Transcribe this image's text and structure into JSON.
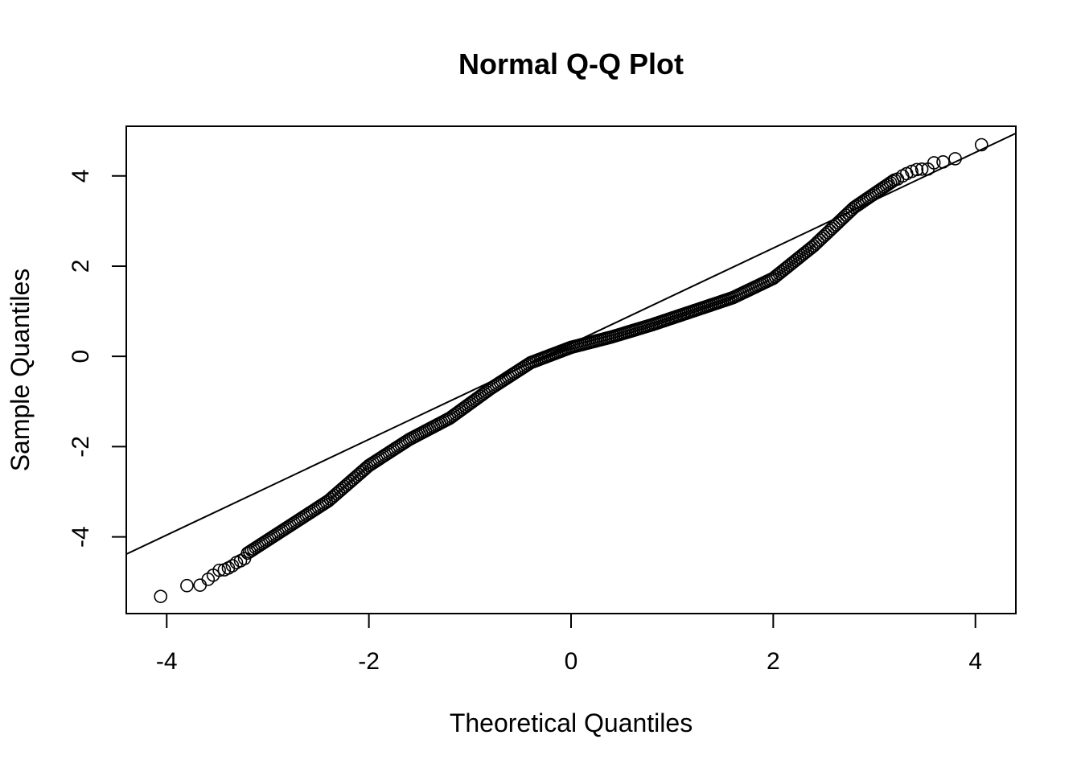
{
  "chart_data": {
    "type": "scatter",
    "subtype": "normal-qq",
    "title": "Normal Q-Q Plot",
    "xlabel": "Theoretical Quantiles",
    "ylabel": "Sample Quantiles",
    "xlim": [
      -4.4,
      4.4
    ],
    "ylim": [
      -5.7,
      5.1
    ],
    "xticks": [
      -4,
      -2,
      0,
      2,
      4
    ],
    "xtick_labels": [
      "-4",
      "-2",
      "0",
      "2",
      "4"
    ],
    "yticks": [
      -4,
      -2,
      0,
      2,
      4
    ],
    "ytick_labels": [
      "-4",
      "-2",
      "0",
      "2",
      "4"
    ],
    "grid": false,
    "legend": "none",
    "marker": "open-circle",
    "reference_line": {
      "slope": 1.06,
      "intercept": 0.28
    },
    "curve_x": [
      -3.2,
      -2.8,
      -2.4,
      -2.0,
      -1.6,
      -1.2,
      -0.8,
      -0.4,
      0.0,
      0.4,
      0.8,
      1.2,
      1.6,
      2.0,
      2.4,
      2.8,
      3.2
    ],
    "curve_y": [
      -4.36,
      -3.78,
      -3.2,
      -2.42,
      -1.84,
      -1.37,
      -0.72,
      -0.14,
      0.2,
      0.43,
      0.7,
      1.0,
      1.3,
      1.73,
      2.45,
      3.3,
      3.91
    ],
    "tail_points": [
      {
        "x": -4.06,
        "y": -5.32
      },
      {
        "x": -3.8,
        "y": -5.08
      },
      {
        "x": -3.67,
        "y": -5.07
      },
      {
        "x": -3.59,
        "y": -4.94
      },
      {
        "x": -3.54,
        "y": -4.85
      },
      {
        "x": -3.48,
        "y": -4.74
      },
      {
        "x": -3.43,
        "y": -4.73
      },
      {
        "x": -3.39,
        "y": -4.69
      },
      {
        "x": -3.35,
        "y": -4.64
      },
      {
        "x": -3.31,
        "y": -4.57
      },
      {
        "x": -3.27,
        "y": -4.53
      },
      {
        "x": -3.23,
        "y": -4.48
      },
      {
        "x": 3.23,
        "y": 3.93
      },
      {
        "x": 3.28,
        "y": 4.0
      },
      {
        "x": 3.32,
        "y": 4.05
      },
      {
        "x": 3.37,
        "y": 4.1
      },
      {
        "x": 3.42,
        "y": 4.14
      },
      {
        "x": 3.47,
        "y": 4.15
      },
      {
        "x": 3.53,
        "y": 4.15
      },
      {
        "x": 3.59,
        "y": 4.29
      },
      {
        "x": 3.68,
        "y": 4.31
      },
      {
        "x": 3.8,
        "y": 4.38
      },
      {
        "x": 4.06,
        "y": 4.69
      }
    ],
    "colors": {
      "points": "#000000",
      "line": "#000000",
      "background": "#ffffff"
    }
  }
}
